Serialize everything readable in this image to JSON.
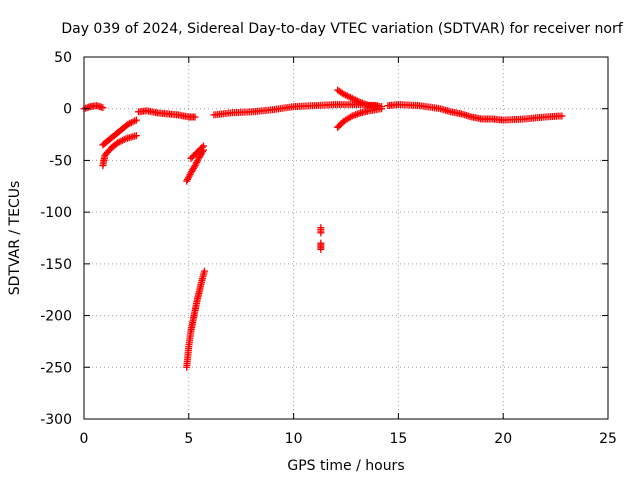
{
  "chart_data": {
    "type": "scatter",
    "title": "Day 039 of 2024, Sidereal Day-to-day VTEC variation (SDTVAR) for receiver norf",
    "xlabel": "GPS time / hours",
    "ylabel": "SDTVAR / TECUs",
    "xlim": [
      0,
      25
    ],
    "ylim": [
      -300,
      50
    ],
    "xticks": [
      "0",
      "5",
      "10",
      "15",
      "20",
      "25"
    ],
    "yticks": [
      "50",
      "0",
      "-50",
      "-100",
      "-150",
      "-200",
      "-250",
      "-300"
    ],
    "grid": true,
    "legend": "none",
    "marker": "plus",
    "color": "#ff0000",
    "series": [
      {
        "segments": [
          [
            [
              0.0,
              0
            ],
            [
              0.3,
              2
            ],
            [
              0.6,
              3
            ],
            [
              0.9,
              1
            ]
          ],
          [
            [
              0.9,
              -55
            ],
            [
              1.0,
              -45
            ],
            [
              1.3,
              -38
            ],
            [
              1.6,
              -33
            ],
            [
              2.0,
              -29
            ],
            [
              2.5,
              -26
            ]
          ],
          [
            [
              0.9,
              -35
            ],
            [
              1.2,
              -30
            ],
            [
              1.5,
              -25
            ],
            [
              1.8,
              -20
            ],
            [
              2.1,
              -15
            ],
            [
              2.5,
              -11
            ]
          ],
          [
            [
              2.6,
              -3
            ],
            [
              3.0,
              -2
            ],
            [
              3.5,
              -4
            ],
            [
              4.0,
              -5
            ],
            [
              4.5,
              -6
            ],
            [
              5.0,
              -8
            ],
            [
              5.3,
              -8
            ]
          ],
          [
            [
              4.9,
              -70
            ],
            [
              5.1,
              -62
            ],
            [
              5.3,
              -55
            ],
            [
              5.5,
              -47
            ],
            [
              5.7,
              -40
            ]
          ],
          [
            [
              5.1,
              -48
            ],
            [
              5.3,
              -44
            ],
            [
              5.5,
              -40
            ],
            [
              5.7,
              -36
            ]
          ],
          [
            [
              4.9,
              -250
            ],
            [
              5.0,
              -230
            ],
            [
              5.1,
              -215
            ],
            [
              5.2,
              -205
            ],
            [
              5.3,
              -195
            ],
            [
              5.4,
              -185
            ],
            [
              5.5,
              -177
            ],
            [
              5.6,
              -168
            ],
            [
              5.75,
              -157
            ]
          ],
          [
            [
              6.2,
              -6
            ],
            [
              7.0,
              -4
            ],
            [
              8.0,
              -3
            ],
            [
              9.0,
              -1
            ],
            [
              10.0,
              2
            ],
            [
              11.0,
              3
            ],
            [
              12.0,
              4
            ],
            [
              13.0,
              4
            ],
            [
              14.0,
              3
            ]
          ],
          [
            [
              11.3,
              -115
            ],
            [
              11.3,
              -120
            ]
          ],
          [
            [
              11.3,
              -130
            ],
            [
              11.3,
              -136
            ]
          ],
          [
            [
              12.1,
              18
            ],
            [
              12.4,
              14
            ],
            [
              12.8,
              10
            ],
            [
              13.2,
              6
            ],
            [
              13.6,
              3
            ],
            [
              14.2,
              2
            ]
          ],
          [
            [
              12.1,
              -18
            ],
            [
              12.4,
              -12
            ],
            [
              12.8,
              -7
            ],
            [
              13.2,
              -4
            ],
            [
              13.6,
              -2
            ],
            [
              14.2,
              0
            ]
          ],
          [
            [
              14.5,
              3
            ],
            [
              15.0,
              4
            ],
            [
              16.0,
              3
            ],
            [
              17.0,
              0
            ],
            [
              17.5,
              -3
            ],
            [
              18.0,
              -5
            ],
            [
              18.5,
              -8
            ],
            [
              19.0,
              -10
            ],
            [
              19.5,
              -10
            ],
            [
              20.0,
              -11
            ],
            [
              21.0,
              -10
            ],
            [
              22.0,
              -8
            ],
            [
              22.8,
              -7
            ]
          ]
        ]
      }
    ]
  }
}
